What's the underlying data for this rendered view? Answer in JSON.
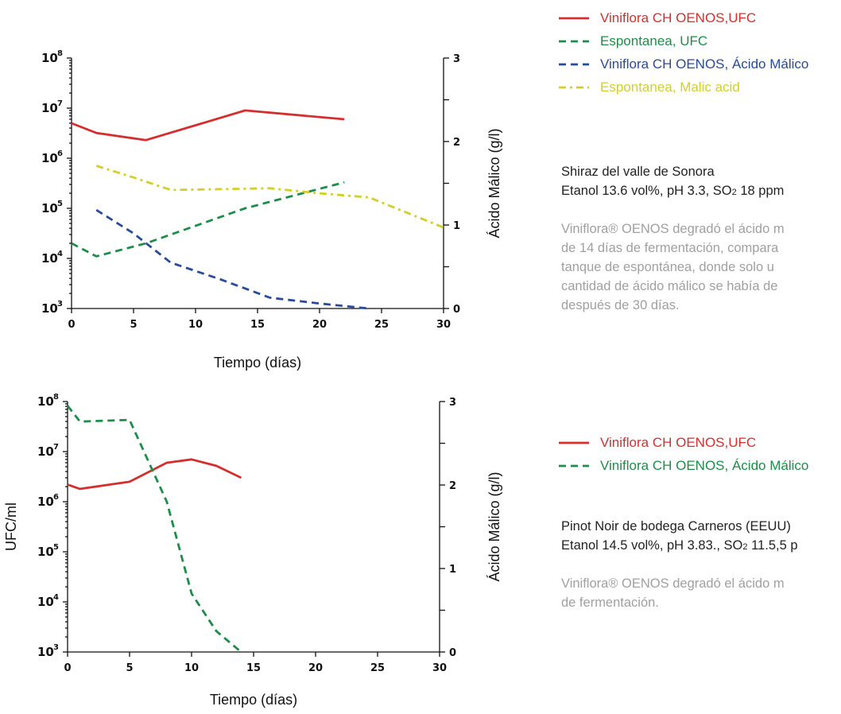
{
  "colors": {
    "red": "#d32f2f",
    "green": "#1e8c4a",
    "blue": "#2a4a9a",
    "yellow": "#d2cf2a"
  },
  "panel1": {
    "legend": [
      {
        "label": "Viniflora CH OENOS,UFC",
        "color": "#d32f2f",
        "dash": "solid"
      },
      {
        "label": "Espontanea, UFC",
        "color": "#1e8c4a",
        "dash": "dash"
      },
      {
        "label": "Viniflora CH OENOS, Ácido Málico",
        "color": "#2a4a9a",
        "dash": "dash"
      },
      {
        "label": "Espontanea, Malic acid",
        "color": "#d2cf2a",
        "dash": "dashdot"
      }
    ],
    "title_line1": "Shiraz del valle de Sonora",
    "title_line2_pre": "Etanol 13.6 vol%, pH 3.3, SO",
    "title_line2_sub": "2",
    "title_line2_post": " 18 ppm",
    "desc": [
      "Viniflora® OENOS degradó el ácido m",
      "de 14 días de fermentación, compara",
      "tanque de espontánea, donde solo u",
      "cantidad de ácido málico se había de",
      "después de 30 días."
    ]
  },
  "panel2": {
    "legend": [
      {
        "label": "Viniflora CH OENOS,UFC",
        "color": "#d32f2f",
        "dash": "solid"
      },
      {
        "label": "Viniflora CH OENOS, Ácido Málico",
        "color": "#1e8c4a",
        "dash": "dash"
      }
    ],
    "title_line1": "Pinot Noir de bodega Carneros (EEUU)",
    "title_line2_pre": "Etanol 14.5 vol%, pH 3.83., SO",
    "title_line2_sub": "2",
    "title_line2_post": " 11.5,5 p",
    "desc": [
      "Viniflora® OENOS degradó el ácido m",
      "de fermentación."
    ]
  },
  "chart_data": [
    {
      "type": "line",
      "xlabel": "Tiempo (días)",
      "ylabel": "",
      "y2label": "Ácido Málico (g/l)",
      "xlim": [
        0,
        30
      ],
      "xticks": [
        0,
        5,
        10,
        15,
        20,
        25,
        30
      ],
      "ylim": [
        1000,
        100000000
      ],
      "yscale": "log",
      "yticks": [
        "3",
        "4",
        "5",
        "6",
        "7",
        "8"
      ],
      "ytick_base": "10",
      "y2lim": [
        0,
        3
      ],
      "y2ticks": [
        0,
        1,
        2,
        3
      ],
      "series": [
        {
          "name": "Viniflora CH OENOS,UFC",
          "axis": "left",
          "color": "#d32f2f",
          "dash": "solid",
          "x": [
            0,
            2,
            6,
            14,
            22
          ],
          "y": [
            5000000,
            3200000,
            2300000,
            9000000,
            6000000
          ]
        },
        {
          "name": "Espontanea, UFC",
          "axis": "left",
          "color": "#1e8c4a",
          "dash": "dash",
          "x": [
            0,
            2,
            6,
            14,
            22
          ],
          "y": [
            20000,
            11000,
            20000,
            100000,
            330000
          ]
        },
        {
          "name": "Viniflora CH OENOS, Ácido Málico",
          "axis": "right",
          "color": "#2a4a9a",
          "dash": "dash",
          "x": [
            2,
            5,
            8,
            12,
            16,
            20,
            24
          ],
          "y": [
            1.18,
            0.9,
            0.55,
            0.35,
            0.13,
            0.06,
            0.0
          ]
        },
        {
          "name": "Espontanea, Malic acid",
          "axis": "right",
          "color": "#d2cf2a",
          "dash": "dashdot",
          "x": [
            2,
            5,
            8,
            12,
            16,
            20,
            24,
            30
          ],
          "y": [
            1.71,
            1.57,
            1.42,
            1.43,
            1.44,
            1.38,
            1.33,
            0.97
          ]
        }
      ]
    },
    {
      "type": "line",
      "xlabel": "Tiempo (días)",
      "ylabel": "UFC/ml",
      "y2label": "Ácido Málico (g/l)",
      "xlim": [
        0,
        30
      ],
      "xticks": [
        0,
        5,
        10,
        15,
        20,
        25,
        30
      ],
      "ylim": [
        1000,
        100000000
      ],
      "yscale": "log",
      "yticks": [
        "3",
        "4",
        "5",
        "6",
        "7",
        "8"
      ],
      "ytick_base": "10",
      "y2lim": [
        0,
        3
      ],
      "y2ticks": [
        0,
        1,
        2,
        3
      ],
      "series": [
        {
          "name": "Viniflora CH OENOS,UFC",
          "axis": "left",
          "color": "#d32f2f",
          "dash": "solid",
          "x": [
            0,
            1,
            5,
            8,
            10,
            12,
            14
          ],
          "y": [
            2200000,
            1800000,
            2500000,
            6000000,
            7000000,
            5200000,
            3000000
          ]
        },
        {
          "name": "Viniflora CH OENOS, Ácido Málico",
          "axis": "right",
          "color": "#1e8c4a",
          "dash": "dash",
          "x": [
            0,
            1,
            5,
            8,
            10,
            12,
            14
          ],
          "y": [
            2.95,
            2.76,
            2.78,
            1.8,
            0.7,
            0.25,
            0.0
          ]
        }
      ]
    }
  ]
}
